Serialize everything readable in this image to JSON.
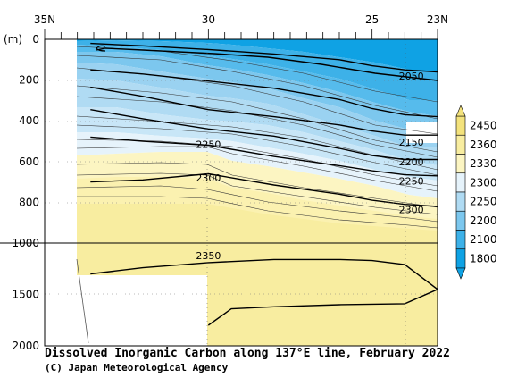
{
  "chart_data": {
    "type": "contour",
    "title": "Dissolved Inorganic Carbon along 137°E line, February 2022",
    "credit": "(C) Japan Meteorological Agency",
    "y_unit": "(m)",
    "x_ticks": [
      "35N",
      "30",
      "25",
      "23N"
    ],
    "x_tick_values": [
      35,
      30,
      25,
      23
    ],
    "xlim": [
      35,
      23
    ],
    "y_ticks": [
      "0",
      "200",
      "400",
      "600",
      "800",
      "1000",
      "1500",
      "2000"
    ],
    "y_tick_values": [
      0,
      200,
      400,
      600,
      800,
      1000,
      1500,
      2000
    ],
    "ylim": [
      0,
      2000
    ],
    "y_scale_break": 1000,
    "colorbar": {
      "ticks": [
        "2450",
        "2360",
        "2330",
        "2300",
        "2250",
        "2200",
        "2100",
        "1800"
      ],
      "colors": [
        "#f3e27c",
        "#f8eda0",
        "#fcf5c2",
        "#e6f3fb",
        "#b0dbf3",
        "#7cc7ee",
        "#3db1e8",
        "#0fa2e4"
      ]
    },
    "contour_labels": [
      {
        "value": "2050",
        "lat": 23.8,
        "depth": 180
      },
      {
        "value": "2150",
        "lat": 23.8,
        "depth": 505
      },
      {
        "value": "2200",
        "lat": 23.8,
        "depth": 600
      },
      {
        "value": "2250",
        "lat": 23.8,
        "depth": 695
      },
      {
        "value": "2300",
        "lat": 23.8,
        "depth": 835
      },
      {
        "value": "2250",
        "lat": 30.0,
        "depth": 515
      },
      {
        "value": "2300",
        "lat": 30.0,
        "depth": 680
      },
      {
        "value": "2350",
        "lat": 30.0,
        "depth": 1120
      }
    ],
    "contours": [
      {
        "value": 2050,
        "bold": true,
        "points": [
          [
            33.6,
            20
          ],
          [
            32,
            32
          ],
          [
            30,
            50
          ],
          [
            28,
            72
          ],
          [
            26,
            100
          ],
          [
            25,
            130
          ],
          [
            24,
            150
          ],
          [
            23,
            160
          ]
        ]
      },
      {
        "value": 2100,
        "bold": true,
        "points": [
          [
            33.6,
            150
          ],
          [
            32,
            170
          ],
          [
            30,
            205
          ],
          [
            28,
            240
          ],
          [
            26,
            295
          ],
          [
            25,
            340
          ],
          [
            24,
            370
          ],
          [
            23,
            380
          ]
        ]
      },
      {
        "value": 2150,
        "bold": true,
        "points": [
          [
            33.6,
            235
          ],
          [
            32,
            280
          ],
          [
            30,
            345
          ],
          [
            28,
            380
          ],
          [
            26,
            420
          ],
          [
            25,
            450
          ],
          [
            24,
            470
          ],
          [
            23,
            470
          ]
        ]
      },
      {
        "value": 2200,
        "bold": true,
        "points": [
          [
            33.6,
            345
          ],
          [
            32,
            390
          ],
          [
            30,
            440
          ],
          [
            28,
            475
          ],
          [
            26,
            535
          ],
          [
            25,
            570
          ],
          [
            24,
            590
          ],
          [
            23,
            590
          ]
        ]
      },
      {
        "value": 2250,
        "bold": true,
        "points": [
          [
            33.6,
            480
          ],
          [
            32,
            500
          ],
          [
            30,
            520
          ],
          [
            28,
            575
          ],
          [
            26,
            620
          ],
          [
            25,
            645
          ],
          [
            24,
            665
          ],
          [
            23,
            670
          ]
        ]
      },
      {
        "value": 2300,
        "bold": true,
        "points": [
          [
            33.6,
            700
          ],
          [
            32,
            690
          ],
          [
            30,
            660
          ],
          [
            28,
            715
          ],
          [
            26,
            760
          ],
          [
            25,
            790
          ],
          [
            24,
            810
          ],
          [
            23,
            820
          ]
        ]
      },
      {
        "value": 2350,
        "bold": true,
        "points": [
          [
            33.6,
            1300
          ],
          [
            32,
            1240
          ],
          [
            30,
            1190
          ],
          [
            28,
            1160
          ],
          [
            26,
            1160
          ],
          [
            25,
            1170
          ],
          [
            24,
            1210
          ],
          [
            23,
            1450
          ],
          [
            24,
            1590
          ],
          [
            26,
            1600
          ],
          [
            28,
            1620
          ],
          [
            29.3,
            1640
          ],
          [
            30,
            1800
          ]
        ]
      }
    ]
  }
}
